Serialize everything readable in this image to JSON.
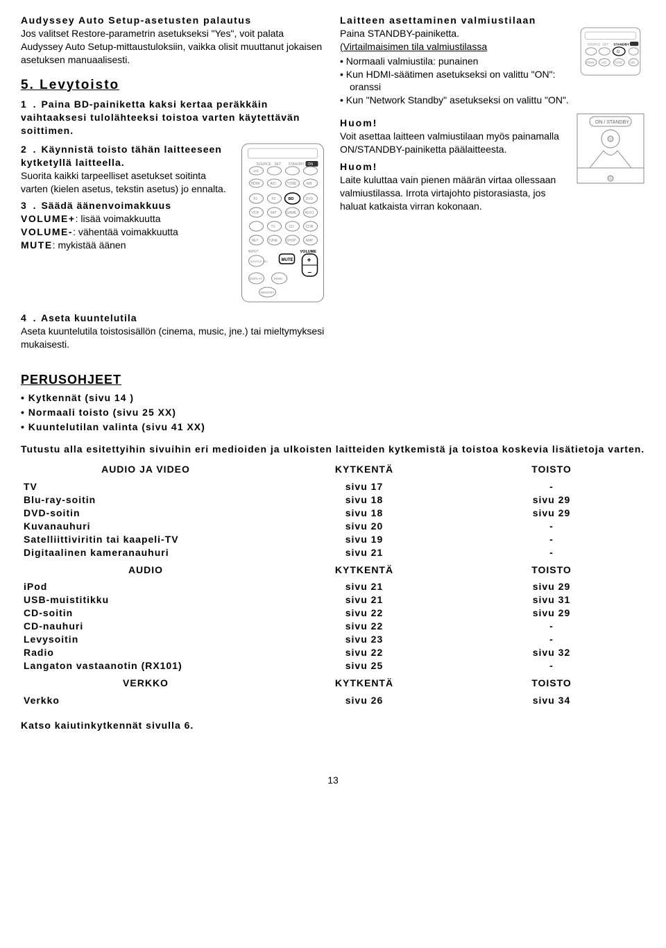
{
  "left": {
    "h_setup": "Audyssey Auto Setup-asetusten palautus",
    "p_setup": "Jos valitset Restore-parametrin asetukseksi \"Yes\", voit palata Audyssey Auto Setup-mittaustuloksiin, vaikka olisit muuttanut jokaisen asetuksen manuaalisesti.",
    "h5_num": "5.",
    "h5": "Levytoisto",
    "s1_n": "1 .",
    "s1": "Paina BD-painiketta kaksi kertaa peräkkäin vaihtaaksesi tulolähteeksi toistoa varten käytettävän soittimen.",
    "s2_n": "2 .",
    "s2a": "Käynnistä toisto tähän laitteeseen kytketyllä laitteella.",
    "s2b": "Suorita kaikki tarpeelliset asetukset soitinta varten (kielen asetus, tekstin asetus) jo ennalta.",
    "s3_n": "3 .",
    "s3a": "Säädä äänenvoimakkuus",
    "s3b1a": "VOLUME+",
    "s3b1b": ": lisää voimakkuutta",
    "s3b2a": "VOLUME-",
    "s3b2b": ": vähentää voimakkuutta",
    "s3b3a": "MUTE",
    "s3b3b": ": mykistää äänen",
    "s4_n": "4 .",
    "s4a": "Aseta kuuntelutila",
    "s4b": "Aseta kuuntelutila toistosisällön (cinema, music, jne.) tai mieltymyksesi mukaisesti."
  },
  "right": {
    "h_standby": "Laitteen asettaminen valmiustilaan",
    "p_press": "Paina STANDBY-painiketta.",
    "p_led": "(Virtailmaisimen tila valmiustilassa",
    "bul1": "Normaali valmiustila: punainen",
    "bul2": "Kun HDMI-säätimen asetukseksi on valittu \"ON\": oranssi",
    "bul3": "Kun \"Network Standby\" asetukseksi on valittu  \"ON\".",
    "huom1": "Huom!",
    "huom1p": "Voit asettaa laitteen valmiustilaan myös painamalla ON/STANDBY-painiketta päälaitteesta.",
    "huom2": "Huom!",
    "huom2p": "Laite kuluttaa vain pienen määrän virtaa ollessaan valmiustilassa. Irrota virtajohto pistorasiasta, jos haluat katkaista virran kokonaan."
  },
  "basics": {
    "h": "PERUSOHJEET",
    "b1": "Kytkennät (sivu 14 )",
    "b2": "Normaali toisto (sivu 25 XX)",
    "b3": "Kuuntelutilan valinta (sivu 41 XX)",
    "note": "Tutustu alla esitettyihin sivuihin eri medioiden ja ulkoisten laitteiden kytkemistä ja toistoa koskevia lisätietoja varten."
  },
  "tbl_av": {
    "h1": "AUDIO JA VIDEO",
    "h2": "KYTKENTÄ",
    "h3": "TOISTO",
    "rows": [
      [
        "TV",
        "sivu 17",
        "-"
      ],
      [
        "Blu-ray-soitin",
        "sivu 18",
        "sivu 29"
      ],
      [
        "DVD-soitin",
        "sivu 18",
        "sivu 29"
      ],
      [
        "Kuvanauhuri",
        "sivu 20",
        "-"
      ],
      [
        "Satelliittiviritin tai kaapeli-TV",
        "sivu 19",
        "-"
      ],
      [
        "Digitaalinen kameranauhuri",
        "sivu 21",
        "-"
      ]
    ]
  },
  "tbl_a": {
    "h1": "AUDIO",
    "h2": "KYTKENTÄ",
    "h3": "TOISTO",
    "rows": [
      [
        "iPod",
        "sivu 21",
        "sivu 29"
      ],
      [
        "USB-muistitikku",
        "sivu 21",
        "sivu 31"
      ],
      [
        "CD-soitin",
        "sivu 22",
        "sivu 29"
      ],
      [
        "CD-nauhuri",
        "sivu 22",
        "-"
      ],
      [
        "Levysoitin",
        "sivu 23",
        "-"
      ],
      [
        "Radio",
        "sivu 22",
        "sivu 32"
      ],
      [
        "Langaton vastaanotin (RX101)",
        "sivu 25",
        "-"
      ]
    ]
  },
  "tbl_n": {
    "h1": "VERKKO",
    "h2": "KYTKENTÄ",
    "h3": "TOISTO",
    "rows": [
      [
        "Verkko",
        "sivu 26",
        "sivu 34"
      ]
    ]
  },
  "foot": "Katso kaiutinkytkennät sivulla 6.",
  "pagenum": "13",
  "remote_labels": [
    "SOURCE",
    "SET",
    "STANDBY",
    "HDMI",
    "A/D",
    "TONE",
    "A/B",
    "F1",
    "F2",
    "BD",
    "DVD",
    "VCR",
    "SAT",
    "GAME",
    "AUX1",
    "TV",
    "CD",
    "CDR",
    "NET",
    "TUNE",
    "SHOP",
    "AMP",
    "INPUT",
    "MUTE",
    "VOLUME",
    "SOURCE SEL",
    "DISPLAY",
    "RDWL",
    "MEMORY"
  ],
  "colors": {
    "text": "#000000",
    "stroke": "#888888",
    "light": "#cccccc"
  }
}
